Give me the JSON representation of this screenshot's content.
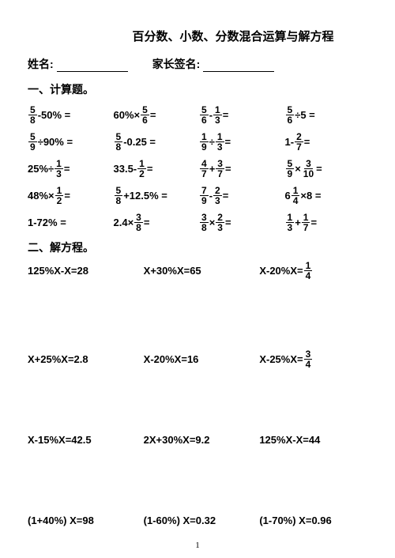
{
  "title": "百分数、小数、分数混合运算与解方程",
  "labels": {
    "name": "姓名:",
    "parent": "家长签名:"
  },
  "section1": "一、计算题。",
  "section2": "二、解方程。",
  "calc": [
    [
      {
        "t": "frac_minus_pct",
        "fn": "5",
        "fd": "8",
        "op": "-",
        "b": "50%"
      },
      {
        "t": "pct_times_frac",
        "a": "60%",
        "op": "×",
        "fn": "5",
        "fd": "6"
      },
      {
        "t": "frac_op_frac",
        "an": "5",
        "ad": "6",
        "op": "-",
        "bn": "1",
        "bd": "3"
      },
      {
        "t": "frac_op_num",
        "fn": "5",
        "fd": "6",
        "op": "÷",
        "b": "5"
      }
    ],
    [
      {
        "t": "frac_minus_pct",
        "fn": "5",
        "fd": "9",
        "op": "÷",
        "b": "90%"
      },
      {
        "t": "frac_minus_pct",
        "fn": "5",
        "fd": "8",
        "op": "-",
        "b": "0.25"
      },
      {
        "t": "frac_op_frac",
        "an": "1",
        "ad": "9",
        "op": "÷",
        "bn": "1",
        "bd": "3"
      },
      {
        "t": "num_op_frac",
        "a": "1",
        "op": "-",
        "fn": "2",
        "fd": "7"
      }
    ],
    [
      {
        "t": "num_op_frac",
        "a": "25%",
        "op": "÷",
        "fn": "1",
        "fd": "3"
      },
      {
        "t": "num_op_frac",
        "a": "33.5",
        "op": "-",
        "fn": "1",
        "fd": "2"
      },
      {
        "t": "frac_op_frac",
        "an": "4",
        "ad": "7",
        "op": "+",
        "bn": "3",
        "bd": "7"
      },
      {
        "t": "frac_op_frac",
        "an": "5",
        "ad": "9",
        "op": "×",
        "bn": "3",
        "bd": "10"
      }
    ],
    [
      {
        "t": "num_op_frac",
        "a": "48%",
        "op": "×",
        "fn": "1",
        "fd": "2"
      },
      {
        "t": "frac_plus_pct",
        "fn": "5",
        "fd": "8",
        "op": "+",
        "b": "12.5%"
      },
      {
        "t": "frac_op_frac",
        "an": "7",
        "ad": "9",
        "op": "-",
        "bn": "2",
        "bd": "3"
      },
      {
        "t": "mix_times_num",
        "w": "6",
        "fn": "1",
        "fd": "4",
        "op": "×",
        "b": "8"
      }
    ],
    [
      {
        "t": "plain",
        "a": "1-72% ="
      },
      {
        "t": "num_op_frac",
        "a": "2.4",
        "op": "×",
        "fn": "3",
        "fd": "8"
      },
      {
        "t": "frac_op_frac",
        "an": "3",
        "ad": "8",
        "op": "×",
        "bn": "2",
        "bd": "3"
      },
      {
        "t": "frac_op_frac",
        "an": "1",
        "ad": "3",
        "op": "+",
        "bn": "1",
        "bd": "7"
      }
    ]
  ],
  "eq": [
    [
      "125%X-X=28",
      "X+30%X=65",
      {
        "lhs": "X-20%X=",
        "fn": "1",
        "fd": "4"
      }
    ],
    [
      "X+25%X=2.8",
      "X-20%X=16",
      {
        "lhs": "X-25%X=",
        "fn": "3",
        "fd": "4"
      }
    ],
    [
      "X-15%X=42.5",
      "2X+30%X=9.2",
      "125%X-X=44"
    ],
    [
      "(1+40%) X=98",
      "(1-60%) X=0.32",
      "(1-70%) X=0.96"
    ]
  ],
  "pagenum": "1"
}
